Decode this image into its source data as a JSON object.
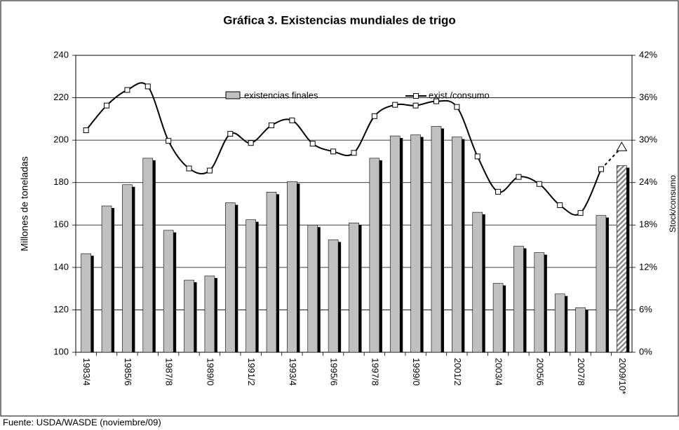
{
  "chart_data": {
    "type": "bar_line",
    "title": "Gráfica 3. Existencias mundiales de trigo",
    "ylabel": "Millones de toneladas",
    "y2label": "Stock/consumo",
    "source": "Fuente: USDA/WASDE (noviembre/09)",
    "categories": [
      "1983/4",
      null,
      "1985/6",
      null,
      "1987/8",
      null,
      "1989/0",
      null,
      "1991/2",
      null,
      "1993/4",
      null,
      "1995/6",
      null,
      "1997/8",
      null,
      "1999/0",
      null,
      "2001/2",
      null,
      "2003/4",
      null,
      "2005/6",
      null,
      "2007/8",
      null,
      "2009/10*"
    ],
    "series": [
      {
        "name": "existencias finales",
        "color": "#c0c0c0",
        "values": [
          146.5,
          169,
          179,
          191.5,
          157.5,
          134,
          136,
          170.5,
          162.5,
          175.5,
          180.5,
          160,
          153,
          161,
          191.5,
          202,
          202.5,
          206.5,
          201.5,
          166,
          132.5,
          150,
          147,
          127.5,
          121,
          164.5,
          188
        ]
      },
      {
        "name": "exist./consumo",
        "color": "#000000",
        "axis": "y2",
        "values": [
          31.4,
          34.9,
          37.1,
          37.6,
          29.9,
          26.0,
          25.7,
          30.9,
          29.6,
          32.1,
          32.8,
          29.5,
          28.4,
          28.2,
          33.4,
          35.0,
          34.9,
          35.5,
          34.7,
          27.7,
          22.7,
          24.8,
          23.8,
          20.8,
          19.7,
          25.9,
          29.0
        ]
      }
    ],
    "ylim": [
      100,
      240
    ],
    "yticks": [
      100,
      120,
      140,
      160,
      180,
      200,
      220,
      240
    ],
    "y2lim": [
      0,
      42
    ],
    "y2ticks": [
      {
        "value": 0,
        "label": "0%"
      },
      {
        "value": 6,
        "label": "6%"
      },
      {
        "value": 12,
        "label": "12%"
      },
      {
        "value": 18,
        "label": "18%"
      },
      {
        "value": 24,
        "label": "24%"
      },
      {
        "value": 30,
        "label": "30%"
      },
      {
        "value": 36,
        "label": "36%"
      },
      {
        "value": 42,
        "label": "42%"
      }
    ],
    "grid": true
  }
}
